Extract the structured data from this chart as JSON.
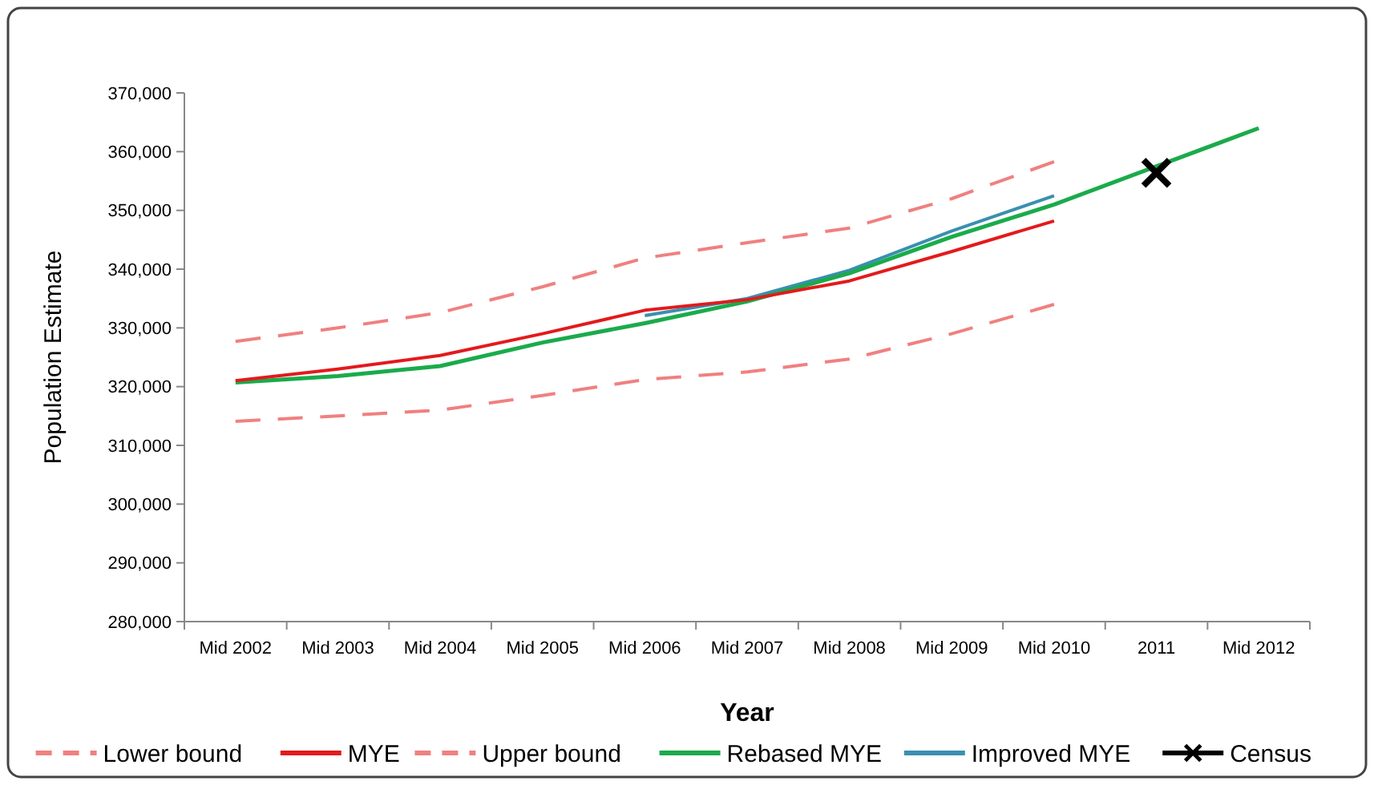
{
  "chart_data": {
    "type": "line",
    "xlabel": "Year",
    "ylabel": "Population Estimate",
    "categories": [
      "Mid 2002",
      "Mid 2003",
      "Mid 2004",
      "Mid 2005",
      "Mid 2006",
      "Mid 2007",
      "Mid 2008",
      "Mid 2009",
      "Mid 2010",
      "2011",
      "Mid 2012"
    ],
    "series": [
      {
        "name": "Lower bound",
        "color": "#f08080",
        "line_style": "dashed",
        "values": [
          314100,
          315000,
          316000,
          318500,
          321200,
          322500,
          324700,
          329000,
          334000,
          null,
          null
        ]
      },
      {
        "name": "MYE",
        "color": "#e31a1c",
        "values": [
          321000,
          323000,
          325300,
          329000,
          333000,
          334800,
          338000,
          343000,
          348200,
          null,
          null
        ]
      },
      {
        "name": "Upper bound",
        "color": "#f08080",
        "line_style": "dashed",
        "values": [
          327700,
          330000,
          332600,
          337000,
          341900,
          344500,
          347000,
          352000,
          358300,
          null,
          null
        ]
      },
      {
        "name": "Rebased MYE",
        "color": "#1aab4b",
        "values": [
          320700,
          321800,
          323500,
          327500,
          330800,
          334500,
          339300,
          345500,
          351000,
          357500,
          364000
        ]
      },
      {
        "name": "Improved MYE",
        "color": "#3a8fb0",
        "values": [
          null,
          null,
          null,
          null,
          332100,
          335000,
          339800,
          346500,
          352500,
          null,
          null
        ]
      },
      {
        "name": "Census",
        "type": "scatter",
        "marker": "cross",
        "color": "#000000",
        "values": [
          null,
          null,
          null,
          null,
          null,
          null,
          null,
          null,
          null,
          356400,
          null
        ]
      }
    ],
    "ylim": [
      280000,
      370000
    ],
    "yticks": [
      {
        "value": 280000,
        "label": "280,000"
      },
      {
        "value": 290000,
        "label": "290,000"
      },
      {
        "value": 300000,
        "label": "300,000"
      },
      {
        "value": 310000,
        "label": "310,000"
      },
      {
        "value": 320000,
        "label": "320,000"
      },
      {
        "value": 330000,
        "label": "330,000"
      },
      {
        "value": 340000,
        "label": "340,000"
      },
      {
        "value": 350000,
        "label": "350,000"
      },
      {
        "value": 360000,
        "label": "360,000"
      },
      {
        "value": 370000,
        "label": "370,000"
      }
    ],
    "grid": false,
    "legend": "bottom",
    "marker": "none"
  }
}
